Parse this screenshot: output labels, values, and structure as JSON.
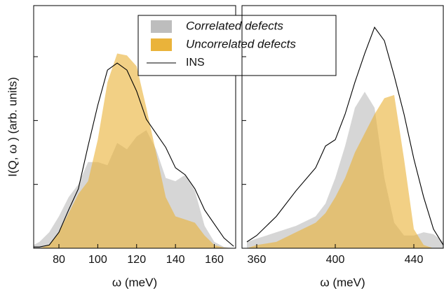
{
  "chart_data": [
    {
      "type": "area",
      "xlabel": "ω (meV)",
      "ylabel": "I(Q, ω ) (arb. units)",
      "legend": "upper right",
      "xlim": [
        67,
        171
      ],
      "xticks": [
        80,
        100,
        120,
        140,
        160
      ],
      "ylim": [
        0,
        3.8
      ],
      "yticks": [
        1,
        2,
        3
      ],
      "x": [
        67,
        70,
        75,
        80,
        85,
        90,
        95,
        100,
        105,
        110,
        115,
        120,
        125,
        130,
        135,
        140,
        145,
        150,
        155,
        160,
        165,
        170
      ],
      "series": [
        {
          "name": "Correlated defects",
          "mark": "area",
          "color": "#bdbdbd",
          "values": [
            0.05,
            0.1,
            0.25,
            0.5,
            0.8,
            1.0,
            1.35,
            1.35,
            1.3,
            1.65,
            1.55,
            1.75,
            1.85,
            1.55,
            1.1,
            1.05,
            1.15,
            0.9,
            0.35,
            0.1,
            0.02,
            0
          ]
        },
        {
          "name": "Uncorrelated defects",
          "mark": "area",
          "color": "#eab33a",
          "values": [
            0,
            0,
            0.05,
            0.25,
            0.55,
            0.85,
            1.05,
            1.7,
            2.6,
            3.05,
            3.02,
            2.85,
            2.2,
            1.5,
            0.8,
            0.5,
            0.45,
            0.4,
            0.2,
            0.05,
            0.01,
            0
          ]
        },
        {
          "name": "INS",
          "mark": "line",
          "color": "#000000",
          "values": [
            0.02,
            0.02,
            0.05,
            0.25,
            0.6,
            0.93,
            1.6,
            2.24,
            2.79,
            2.9,
            2.79,
            2.46,
            2.02,
            1.8,
            1.58,
            1.26,
            1.15,
            0.93,
            0.6,
            0.38,
            0.16,
            0.03
          ]
        }
      ]
    },
    {
      "type": "area",
      "xlabel": "ω (meV)",
      "xlim": [
        352.5,
        455
      ],
      "xticks": [
        360,
        400,
        440
      ],
      "ylim": [
        0,
        3.8
      ],
      "yticks": [
        1,
        2,
        3
      ],
      "x": [
        355,
        360,
        370,
        380,
        390,
        395,
        400,
        405,
        410,
        415,
        420,
        425,
        430,
        435,
        440,
        445,
        450,
        455
      ],
      "series": [
        {
          "mark": "area",
          "color": "#bdbdbd",
          "values": [
            0.1,
            0.15,
            0.25,
            0.35,
            0.5,
            0.7,
            1.1,
            1.6,
            2.2,
            2.45,
            2.2,
            1.1,
            0.4,
            0.2,
            0.2,
            0.25,
            0.22,
            0.1
          ]
        },
        {
          "mark": "area",
          "color": "#eab33a",
          "values": [
            0,
            0.05,
            0.1,
            0.25,
            0.4,
            0.55,
            0.8,
            1.1,
            1.5,
            1.8,
            2.1,
            2.35,
            2.4,
            1.4,
            0.3,
            0.05,
            0,
            0
          ]
        },
        {
          "mark": "line",
          "color": "#000000",
          "values": [
            0.1,
            0.2,
            0.5,
            0.9,
            1.26,
            1.6,
            1.7,
            2.1,
            2.6,
            3.05,
            3.46,
            3.25,
            2.7,
            2.1,
            1.4,
            0.8,
            0.3,
            0.05
          ]
        }
      ]
    }
  ]
}
